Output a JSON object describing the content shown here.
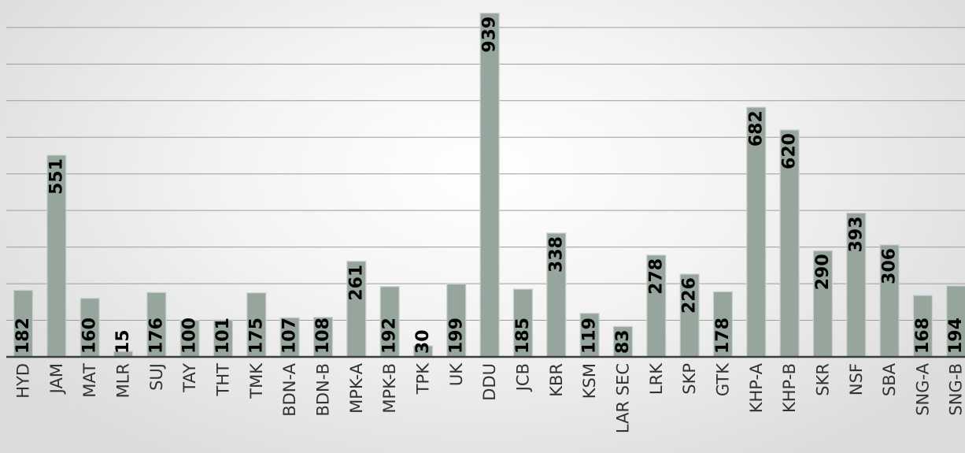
{
  "chart_data": {
    "type": "bar",
    "title": "",
    "xlabel": "",
    "ylabel": "",
    "categories": [
      "HYD",
      "JAM",
      "MAT",
      "MLR",
      "SUJ",
      "TAY",
      "THT",
      "TMK",
      "BDN-A",
      "BDN-B",
      "MPK-A",
      "MPK-B",
      "TPK",
      "UK",
      "DDU",
      "JCB",
      "KBR",
      "KSM",
      "LAR SEC",
      "LRK",
      "SKP",
      "GTK",
      "KHP-A",
      "KHP-B",
      "SKR",
      "NSF",
      "SBA",
      "SNG-A",
      "SNG-B"
    ],
    "values": [
      182,
      551,
      160,
      15,
      176,
      100,
      101,
      175,
      107,
      108,
      261,
      192,
      30,
      199,
      939,
      185,
      338,
      119,
      83,
      278,
      226,
      178,
      682,
      620,
      290,
      393,
      306,
      168,
      194
    ],
    "ylim": [
      0,
      900
    ],
    "grid": true,
    "legend": "none",
    "bar_color": "#97a69d",
    "bar_edge_color": "#c9d1cc",
    "grid_color": "#9d9d9d",
    "axis_color": "#3d3d3d",
    "label_color": "#000000",
    "tick_color": "#333333"
  }
}
